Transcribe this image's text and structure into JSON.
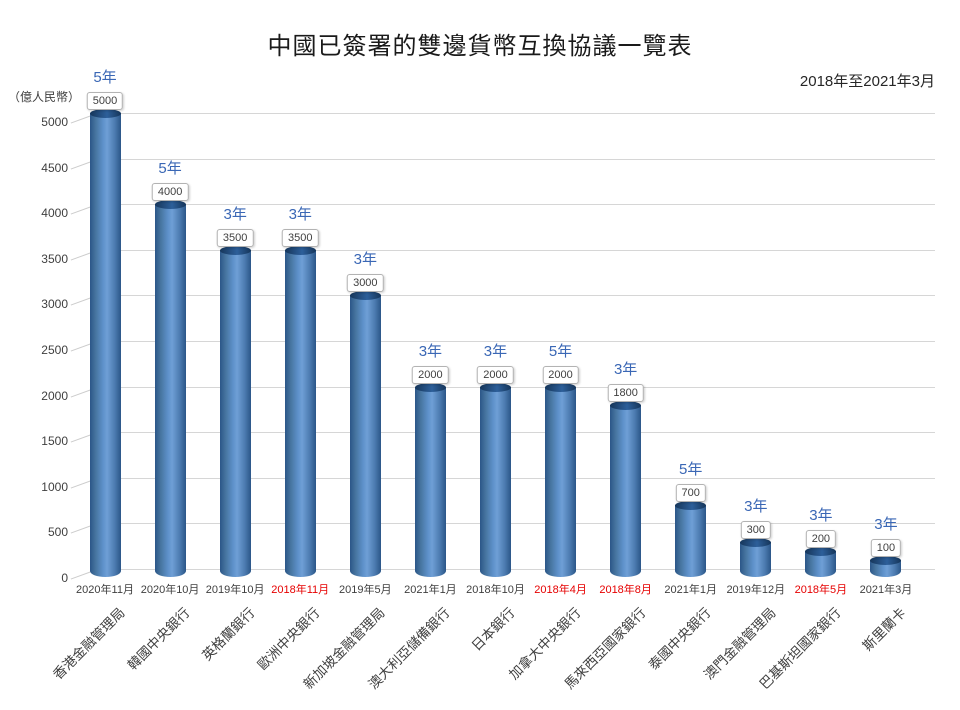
{
  "chart_data": {
    "type": "bar",
    "title": "中國已簽署的雙邊貨幣互換協議一覽表",
    "subtitle": "2018年至2021年3月",
    "unit_label": "（億人民幣）",
    "ylim": [
      0,
      5000
    ],
    "yticks": [
      0,
      500,
      1000,
      1500,
      2000,
      2500,
      3000,
      3500,
      4000,
      4500,
      5000
    ],
    "grid": true,
    "bars": [
      {
        "bank": "香港金融管理局",
        "date": "2020年11月",
        "value": 5000,
        "term": "5年",
        "date_red": false
      },
      {
        "bank": "韓國中央銀行",
        "date": "2020年10月",
        "value": 4000,
        "term": "5年",
        "date_red": false
      },
      {
        "bank": "英格蘭銀行",
        "date": "2019年10月",
        "value": 3500,
        "term": "3年",
        "date_red": false
      },
      {
        "bank": "歐洲中央銀行",
        "date": "2018年11月",
        "value": 3500,
        "term": "3年",
        "date_red": true
      },
      {
        "bank": "新加坡金融管理局",
        "date": "2019年5月",
        "value": 3000,
        "term": "3年",
        "date_red": false
      },
      {
        "bank": "澳大利亞儲備銀行",
        "date": "2021年1月",
        "value": 2000,
        "term": "3年",
        "date_red": false
      },
      {
        "bank": "日本銀行",
        "date": "2018年10月",
        "value": 2000,
        "term": "3年",
        "date_red": false
      },
      {
        "bank": "加拿大中央銀行",
        "date": "2018年4月",
        "value": 2000,
        "term": "5年",
        "date_red": true
      },
      {
        "bank": "馬來西亞國家銀行",
        "date": "2018年8月",
        "value": 1800,
        "term": "3年",
        "date_red": true
      },
      {
        "bank": "泰國中央銀行",
        "date": "2021年1月",
        "value": 700,
        "term": "5年",
        "date_red": false
      },
      {
        "bank": "澳門金融管理局",
        "date": "2019年12月",
        "value": 300,
        "term": "3年",
        "date_red": false
      },
      {
        "bank": "巴基斯坦國家銀行",
        "date": "2018年5月",
        "value": 200,
        "term": "3年",
        "date_red": true
      },
      {
        "bank": "斯里蘭卡",
        "date": "2021年3月",
        "value": 100,
        "term": "3年",
        "date_red": false
      }
    ],
    "colors": {
      "bar_edge": "#2b5688",
      "bar_center": "#6f9fd6",
      "bar_top": "#16365a",
      "term_blue": "#3a67b5",
      "date_red": "#e60000",
      "grid": "#d6d6d6",
      "text": "#3f3f3f"
    }
  }
}
